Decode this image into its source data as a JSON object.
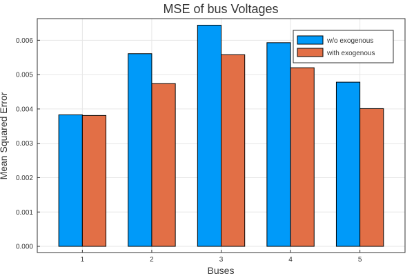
{
  "chart_data": {
    "type": "bar",
    "title": "MSE of bus Voltages",
    "xlabel": "Buses",
    "ylabel": "Mean Squared Error",
    "categories": [
      "1",
      "2",
      "3",
      "4",
      "5"
    ],
    "series": [
      {
        "name": "w/o exogenous",
        "color": "#009af9",
        "values": [
          0.00383,
          0.00561,
          0.00644,
          0.00593,
          0.00478
        ]
      },
      {
        "name": "with exogenous",
        "color": "#e26f46",
        "values": [
          0.00381,
          0.00474,
          0.00558,
          0.0052,
          0.00401
        ]
      }
    ],
    "ylim": [
      -0.00018,
      0.00663
    ],
    "yticks": [
      0.0,
      0.001,
      0.002,
      0.003,
      0.004,
      0.005,
      0.006
    ],
    "ytick_labels": [
      "0.000",
      "0.001",
      "0.002",
      "0.003",
      "0.004",
      "0.005",
      "0.006"
    ],
    "grid": true,
    "legend_position": "top-right"
  }
}
